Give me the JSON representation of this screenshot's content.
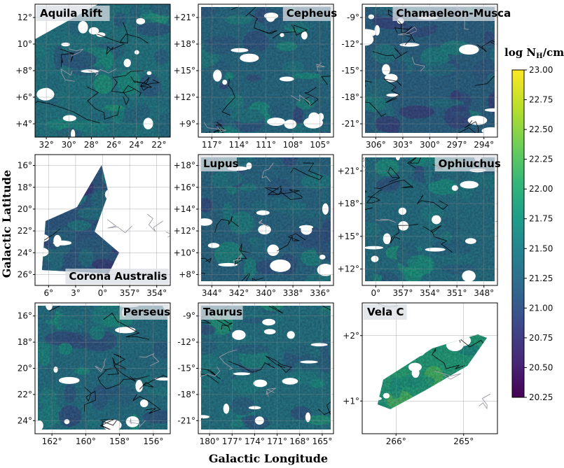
{
  "chart_data": {
    "type": "heatmap",
    "xlabel": "Galactic Longitude",
    "ylabel": "Galactic Latitude",
    "colorbar": {
      "title": "log N",
      "title_sub": "H",
      "title_unit": "/cm²",
      "ticks": [
        "23.00",
        "22.75",
        "22.50",
        "22.25",
        "22.00",
        "21.75",
        "21.50",
        "21.25",
        "21.00",
        "20.75",
        "20.50",
        "20.25"
      ],
      "range": [
        20.25,
        23.0
      ],
      "colors": [
        "#440154",
        "#482878",
        "#3e4989",
        "#31688e",
        "#26828e",
        "#1f9e89",
        "#35b779",
        "#6ece58",
        "#b5de2b",
        "#fde725"
      ]
    },
    "panels": [
      {
        "name": "Aquila Rift",
        "label_side": "left",
        "xticks": [
          "32°",
          "30°",
          "28°",
          "26°",
          "24°",
          "22°"
        ],
        "yticks": [
          "12°",
          "10°",
          "+8°",
          "+6°",
          "+4°"
        ],
        "ytick_side": "left",
        "mean_value": 21.45,
        "map": "wedge"
      },
      {
        "name": "Cepheus",
        "label_side": "right",
        "xticks": [
          "117°",
          "114°",
          "111°",
          "108°",
          "105°"
        ],
        "yticks": [
          "+21°",
          "+18°",
          "+15°",
          "+12°",
          "+9°"
        ],
        "ytick_side": "left",
        "mean_value": 21.3,
        "map": "rect"
      },
      {
        "name": "Chamaeleon-Musca",
        "label_side": "right",
        "xticks": [
          "306°",
          "303°",
          "300°",
          "297°",
          "294°"
        ],
        "yticks": [
          "-9°",
          "-12°",
          "-15°",
          "-18°",
          "-21°"
        ],
        "ytick_side": "left",
        "mean_value": 21.2,
        "map": "rect"
      },
      {
        "name": "Corona Australis",
        "label_side": "bottom-right",
        "xticks": [
          "6°",
          "3°",
          "0°",
          "357°",
          "354°"
        ],
        "yticks": [
          "16°",
          "18°",
          "20°",
          "22°",
          "24°",
          "26°"
        ],
        "ytick_side": "left",
        "mean_value": 21.1,
        "map": "filament"
      },
      {
        "name": "Lupus",
        "label_side": "left",
        "xticks": [
          "344°",
          "342°",
          "340°",
          "338°",
          "336°"
        ],
        "yticks": [
          "+18°",
          "+16°",
          "+14°",
          "+12°",
          "+10°",
          "+8°"
        ],
        "ytick_side": "left",
        "mean_value": 21.25,
        "map": "rect"
      },
      {
        "name": "Ophiuchus",
        "label_side": "right",
        "xticks": [
          "0°",
          "357°",
          "354°",
          "351°",
          "348°"
        ],
        "yticks": [
          "+21°",
          "+18°",
          "+15°",
          "+12°"
        ],
        "ytick_side": "left",
        "mean_value": 21.35,
        "map": "rect"
      },
      {
        "name": "Perseus",
        "label_side": "right",
        "xticks": [
          "162°",
          "160°",
          "158°",
          "156°"
        ],
        "yticks": [
          "16°",
          "18°",
          "20°",
          "22°",
          "24°"
        ],
        "ytick_side": "left",
        "mean_value": 21.35,
        "map": "rect"
      },
      {
        "name": "Taurus",
        "label_side": "left",
        "xticks": [
          "180°",
          "177°",
          "174°",
          "171°",
          "168°",
          "165°"
        ],
        "yticks": [
          "-9°",
          "-12°",
          "-15°",
          "-18°",
          "-21°"
        ],
        "ytick_side": "left",
        "mean_value": 21.4,
        "map": "rect"
      },
      {
        "name": "Vela C",
        "label_side": "left",
        "xticks": [
          "266°",
          "265°"
        ],
        "yticks": [
          "+2°",
          "+1°"
        ],
        "ytick_side": "left",
        "mean_value": 21.9,
        "map": "ridge"
      }
    ]
  }
}
